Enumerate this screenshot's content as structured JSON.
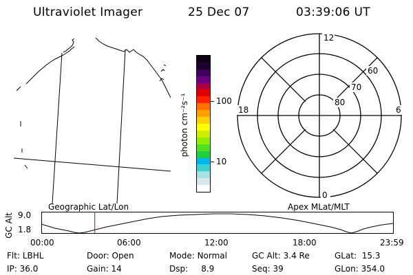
{
  "header": {
    "title": "Ultraviolet Imager",
    "date": "25 Dec 07",
    "time": "03:39:06 UT"
  },
  "map_panel": {
    "label": "Geographic Lat/Lon",
    "line_color": "#000000"
  },
  "colorbar": {
    "unit_label": "photon cm⁻²s⁻¹",
    "tick_labels": [
      "100",
      "10"
    ],
    "colors": [
      "#ffffff",
      "#d8e8e8",
      "#a8e0e0",
      "#40d0d0",
      "#00b8e8",
      "#20d040",
      "#50e020",
      "#90f000",
      "#d0f000",
      "#ffff00",
      "#ffd000",
      "#ffa000",
      "#ff7000",
      "#ff2000",
      "#e00000",
      "#b00040",
      "#700080",
      "#400060",
      "#200030",
      "#100018"
    ]
  },
  "polar_panel": {
    "label": "Apex MLat/MLT",
    "mlt_labels": {
      "top": "12",
      "left": "18",
      "right": "6",
      "bottom": "0"
    },
    "lat_labels": [
      "60",
      "70",
      "80"
    ]
  },
  "altitude_plot": {
    "ylabel": "GC Alt",
    "ytick_labels": [
      "9.0",
      "1.8"
    ],
    "xtick_labels": [
      "00:00",
      "06:00",
      "12:00",
      "18:00",
      "23:59"
    ],
    "current_time_marker_color": "#cc0000",
    "current_time_hours": 3.65
  },
  "status": {
    "row1": [
      {
        "label": "Flt:",
        "value": "LBHL"
      },
      {
        "label": "Door:",
        "value": "Open"
      },
      {
        "label": "Mode:",
        "value": "Normal"
      },
      {
        "label": "GC Alt:",
        "value": "3.4 Re"
      },
      {
        "label": "GLat:",
        "value": "15.3"
      }
    ],
    "row2": [
      {
        "label": "IP:",
        "value": "36.0"
      },
      {
        "label": "Gain:",
        "value": "14"
      },
      {
        "label": "Dsp:",
        "value": "8.9"
      },
      {
        "label": "Seq:",
        "value": "39"
      },
      {
        "label": "GLon:",
        "value": "354.0"
      }
    ]
  }
}
